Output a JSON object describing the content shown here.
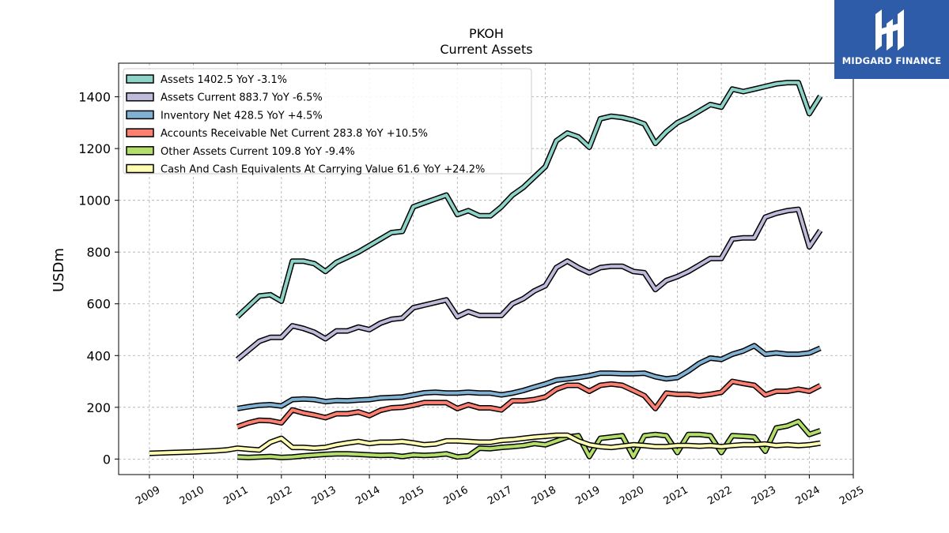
{
  "brand": {
    "name": "MIDGARD FINANCE",
    "logo_color": "#2f5ca8"
  },
  "chart_data": {
    "type": "line",
    "title": "PKOH",
    "subtitle": "Current  Assets",
    "ylabel": "USDm",
    "xlabel": "",
    "xlim": [
      2008.3,
      2025.0
    ],
    "ylim": [
      -60,
      1530
    ],
    "yticks": [
      0,
      200,
      400,
      600,
      800,
      1000,
      1200,
      1400
    ],
    "xticks": [
      "2009",
      "2010",
      "2011",
      "2012",
      "2013",
      "2014",
      "2015",
      "2016",
      "2017",
      "2018",
      "2019",
      "2020",
      "2021",
      "2022",
      "2023",
      "2024",
      "2025"
    ],
    "grid": true,
    "legend_position": "top-left",
    "series": [
      {
        "name": "Assets  1402.5 YoY -3.1%",
        "color": "#8dd3c7",
        "x": [
          2011.0,
          2011.25,
          2011.5,
          2011.75,
          2012.0,
          2012.25,
          2012.5,
          2012.75,
          2013.0,
          2013.25,
          2013.5,
          2013.75,
          2014.0,
          2014.25,
          2014.5,
          2014.75,
          2015.0,
          2015.25,
          2015.5,
          2015.75,
          2016.0,
          2016.25,
          2016.5,
          2016.75,
          2017.0,
          2017.25,
          2017.5,
          2017.75,
          2018.0,
          2018.25,
          2018.5,
          2018.75,
          2019.0,
          2019.25,
          2019.5,
          2019.75,
          2020.0,
          2020.25,
          2020.5,
          2020.75,
          2021.0,
          2021.25,
          2021.5,
          2021.75,
          2022.0,
          2022.25,
          2022.5,
          2022.75,
          2023.0,
          2023.25,
          2023.5,
          2023.75,
          2024.0,
          2024.25
        ],
        "values": [
          550,
          590,
          630,
          635,
          610,
          765,
          765,
          755,
          725,
          760,
          780,
          800,
          825,
          850,
          875,
          880,
          975,
          990,
          1005,
          1020,
          945,
          960,
          940,
          940,
          975,
          1020,
          1050,
          1090,
          1130,
          1230,
          1260,
          1245,
          1205,
          1315,
          1325,
          1320,
          1310,
          1295,
          1220,
          1265,
          1300,
          1320,
          1345,
          1370,
          1360,
          1430,
          1420,
          1430,
          1440,
          1450,
          1455,
          1455,
          1335,
          1402.5
        ]
      },
      {
        "name": "Assets Current  883.7 YoY -6.5%",
        "color": "#bebada",
        "x": [
          2011.0,
          2011.25,
          2011.5,
          2011.75,
          2012.0,
          2012.25,
          2012.5,
          2012.75,
          2013.0,
          2013.25,
          2013.5,
          2013.75,
          2014.0,
          2014.25,
          2014.5,
          2014.75,
          2015.0,
          2015.25,
          2015.5,
          2015.75,
          2016.0,
          2016.25,
          2016.5,
          2016.75,
          2017.0,
          2017.25,
          2017.5,
          2017.75,
          2018.0,
          2018.25,
          2018.5,
          2018.75,
          2019.0,
          2019.25,
          2019.5,
          2019.75,
          2020.0,
          2020.25,
          2020.5,
          2020.75,
          2021.0,
          2021.25,
          2021.5,
          2021.75,
          2022.0,
          2022.25,
          2022.5,
          2022.75,
          2023.0,
          2023.25,
          2023.5,
          2023.75,
          2024.0,
          2024.25
        ],
        "values": [
          385,
          420,
          455,
          470,
          470,
          515,
          505,
          490,
          465,
          495,
          495,
          510,
          500,
          525,
          540,
          545,
          585,
          595,
          605,
          615,
          550,
          570,
          555,
          555,
          555,
          600,
          620,
          650,
          670,
          740,
          765,
          740,
          720,
          740,
          745,
          745,
          725,
          720,
          655,
          690,
          705,
          725,
          750,
          775,
          775,
          850,
          855,
          855,
          935,
          950,
          960,
          965,
          820,
          883.7
        ]
      },
      {
        "name": "Inventory Net  428.5 YoY +4.5%",
        "color": "#80b1d3",
        "x": [
          2011.0,
          2011.25,
          2011.5,
          2011.75,
          2012.0,
          2012.25,
          2012.5,
          2012.75,
          2013.0,
          2013.25,
          2013.5,
          2013.75,
          2014.0,
          2014.25,
          2014.5,
          2014.75,
          2015.0,
          2015.25,
          2015.5,
          2015.75,
          2016.0,
          2016.25,
          2016.5,
          2016.75,
          2017.0,
          2017.25,
          2017.5,
          2017.75,
          2018.0,
          2018.25,
          2018.5,
          2018.75,
          2019.0,
          2019.25,
          2019.5,
          2019.75,
          2020.0,
          2020.25,
          2020.5,
          2020.75,
          2021.0,
          2021.25,
          2021.5,
          2021.75,
          2022.0,
          2022.25,
          2022.5,
          2022.75,
          2023.0,
          2023.25,
          2023.5,
          2023.75,
          2024.0,
          2024.25
        ],
        "values": [
          195,
          202,
          208,
          210,
          205,
          230,
          232,
          230,
          222,
          226,
          225,
          228,
          230,
          236,
          238,
          240,
          248,
          256,
          258,
          255,
          255,
          258,
          255,
          255,
          248,
          255,
          265,
          278,
          290,
          305,
          310,
          315,
          322,
          332,
          332,
          330,
          330,
          332,
          318,
          310,
          315,
          340,
          370,
          390,
          385,
          405,
          418,
          438,
          405,
          410,
          405,
          405,
          410,
          428.5
        ]
      },
      {
        "name": "Accounts Receivable Net Current  283.8 YoY +10.5%",
        "color": "#fb8072",
        "x": [
          2011.0,
          2011.25,
          2011.5,
          2011.75,
          2012.0,
          2012.25,
          2012.5,
          2012.75,
          2013.0,
          2013.25,
          2013.5,
          2013.75,
          2014.0,
          2014.25,
          2014.5,
          2014.75,
          2015.0,
          2015.25,
          2015.5,
          2015.75,
          2016.0,
          2016.25,
          2016.5,
          2016.75,
          2017.0,
          2017.25,
          2017.5,
          2017.75,
          2018.0,
          2018.25,
          2018.5,
          2018.75,
          2019.0,
          2019.25,
          2019.5,
          2019.75,
          2020.0,
          2020.25,
          2020.5,
          2020.75,
          2021.0,
          2021.25,
          2021.5,
          2021.75,
          2022.0,
          2022.25,
          2022.5,
          2022.75,
          2023.0,
          2023.25,
          2023.5,
          2023.75,
          2024.0,
          2024.25
        ],
        "values": [
          125,
          140,
          150,
          148,
          140,
          190,
          178,
          170,
          160,
          175,
          175,
          182,
          168,
          188,
          198,
          200,
          208,
          218,
          218,
          218,
          195,
          210,
          198,
          198,
          190,
          225,
          225,
          230,
          240,
          270,
          285,
          285,
          262,
          285,
          290,
          285,
          265,
          245,
          195,
          255,
          250,
          250,
          245,
          250,
          258,
          300,
          292,
          285,
          248,
          262,
          262,
          270,
          262,
          283.8
        ]
      },
      {
        "name": "Other Assets Current  109.8 YoY -9.4%",
        "color": "#b3de69",
        "x": [
          2011.0,
          2011.25,
          2011.5,
          2011.75,
          2012.0,
          2012.25,
          2012.5,
          2012.75,
          2013.0,
          2013.25,
          2013.5,
          2013.75,
          2014.0,
          2014.25,
          2014.5,
          2014.75,
          2015.0,
          2015.25,
          2015.5,
          2015.75,
          2016.0,
          2016.25,
          2016.5,
          2016.75,
          2017.0,
          2017.25,
          2017.5,
          2017.75,
          2018.0,
          2018.25,
          2018.5,
          2018.75,
          2019.0,
          2019.25,
          2019.5,
          2019.75,
          2020.0,
          2020.25,
          2020.5,
          2020.75,
          2021.0,
          2021.25,
          2021.5,
          2021.75,
          2022.0,
          2022.25,
          2022.5,
          2022.75,
          2023.0,
          2023.25,
          2023.5,
          2023.75,
          2024.0,
          2024.25
        ],
        "values": [
          8,
          6,
          8,
          10,
          6,
          8,
          12,
          15,
          18,
          20,
          20,
          18,
          16,
          14,
          15,
          10,
          16,
          14,
          16,
          20,
          8,
          12,
          42,
          40,
          45,
          48,
          52,
          60,
          55,
          70,
          85,
          90,
          10,
          80,
          85,
          90,
          10,
          90,
          95,
          90,
          25,
          95,
          95,
          90,
          25,
          90,
          88,
          85,
          30,
          120,
          128,
          145,
          95,
          109.8
        ]
      },
      {
        "name": "Cash And Cash Equivalents At Carrying Value  61.6 YoY +24.2%",
        "color": "#ffffb3",
        "x": [
          2009.0,
          2009.5,
          2010.0,
          2010.5,
          2010.75,
          2011.0,
          2011.25,
          2011.5,
          2011.75,
          2012.0,
          2012.25,
          2012.5,
          2012.75,
          2013.0,
          2013.25,
          2013.5,
          2013.75,
          2014.0,
          2014.25,
          2014.5,
          2014.75,
          2015.0,
          2015.25,
          2015.5,
          2015.75,
          2016.0,
          2016.25,
          2016.5,
          2016.75,
          2017.0,
          2017.25,
          2017.5,
          2017.75,
          2018.0,
          2018.25,
          2018.5,
          2018.75,
          2019.0,
          2019.25,
          2019.5,
          2019.75,
          2020.0,
          2020.25,
          2020.5,
          2020.75,
          2021.0,
          2021.25,
          2021.5,
          2021.75,
          2022.0,
          2022.25,
          2022.5,
          2022.75,
          2023.0,
          2023.25,
          2023.5,
          2023.75,
          2024.0,
          2024.25
        ],
        "values": [
          22,
          25,
          28,
          32,
          35,
          42,
          38,
          35,
          65,
          80,
          45,
          45,
          42,
          45,
          55,
          62,
          68,
          60,
          65,
          65,
          68,
          62,
          55,
          58,
          70,
          70,
          68,
          65,
          65,
          72,
          75,
          80,
          85,
          88,
          92,
          92,
          70,
          55,
          48,
          45,
          50,
          55,
          52,
          48,
          48,
          52,
          52,
          50,
          52,
          48,
          52,
          55,
          55,
          58,
          52,
          55,
          52,
          55,
          61.6
        ]
      }
    ]
  }
}
